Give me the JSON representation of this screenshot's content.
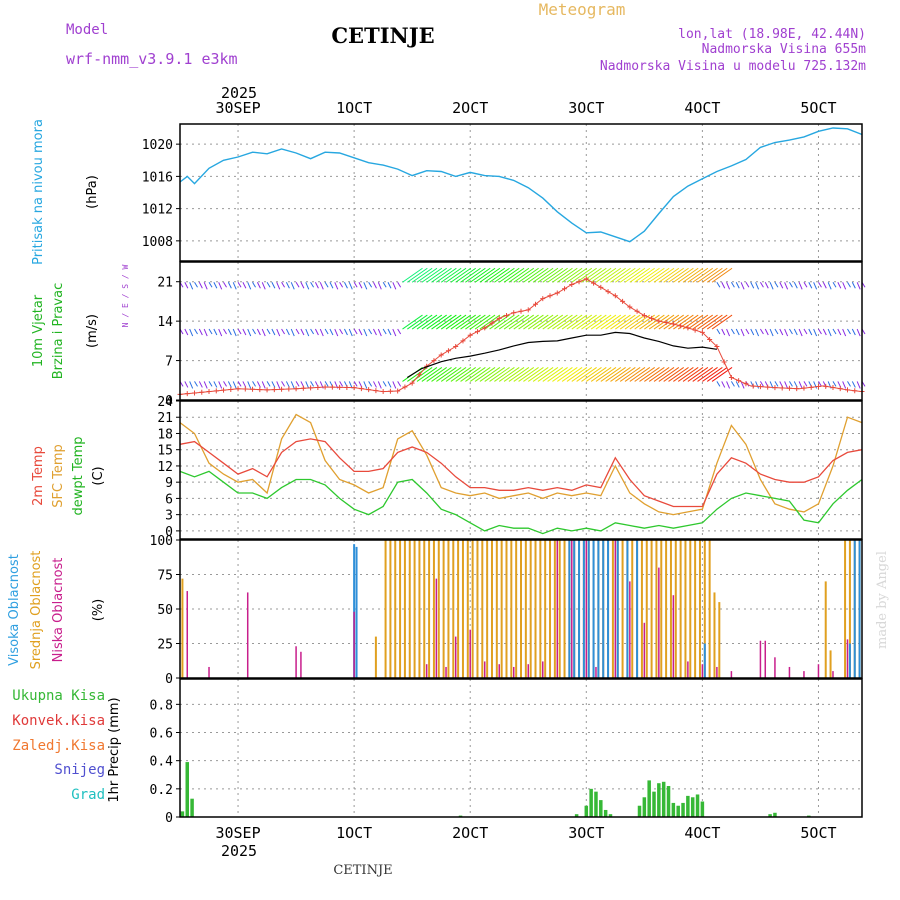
{
  "header": {
    "model_label": "Model",
    "model_name": "wrf-nmm_v3.9.1 e3km",
    "station": "CETINJE",
    "title": "Meteogram",
    "lonlat": "lon,lat (18.98E, 42.44N)",
    "altitude": "Nadmorska Visina 655m",
    "model_altitude": "Nadmorska Visina u modelu 725.132m",
    "footer_station": "CETINJE",
    "credit": "made by Angel"
  },
  "colors": {
    "pressure": "#27a7e0",
    "temp2m": "#e84a3c",
    "sfc": "#e0a030",
    "dewpt": "#2ec82e",
    "high_cloud": "#2f8fd8",
    "mid_cloud": "#e0a020",
    "low_cloud": "#c81e8c",
    "precip": "#36b836",
    "model_text": "#a040d0",
    "title_text": "#e6b860"
  },
  "time_axis": {
    "top_year": "2025",
    "bottom_year": "2025",
    "labels": [
      "30SEP",
      "1OCT",
      "2OCT",
      "3OCT",
      "4OCT",
      "5OCT"
    ],
    "label_hours": [
      12,
      36,
      60,
      84,
      108,
      132
    ],
    "x_start_hour": 0,
    "x_end_hour": 141
  },
  "chart_data": [
    {
      "type": "line",
      "name": "pressure",
      "ylabel_lines": [
        "Pritisak na nivou mora",
        "(hPa)"
      ],
      "ylim": [
        1005.5,
        1022.5
      ],
      "yticks": [
        1008,
        1012,
        1016,
        1020
      ],
      "series": [
        {
          "name": "MSLP",
          "x": [
            0,
            1.5,
            3,
            6,
            9,
            12,
            15,
            18,
            21,
            24,
            27,
            30,
            33,
            36,
            39,
            42,
            45,
            48,
            51,
            54,
            57,
            60,
            63,
            66,
            69,
            72,
            75,
            78,
            81,
            84,
            87,
            90,
            93,
            96,
            99,
            102,
            105,
            108,
            111,
            114,
            117,
            120,
            123,
            126,
            129,
            132,
            135,
            138,
            141
          ],
          "values": [
            1015.3,
            1016.0,
            1015.1,
            1017.0,
            1018.0,
            1018.4,
            1019.0,
            1018.8,
            1019.4,
            1018.9,
            1018.2,
            1019.0,
            1018.9,
            1018.3,
            1017.7,
            1017.4,
            1016.9,
            1016.1,
            1016.7,
            1016.6,
            1016.0,
            1016.5,
            1016.1,
            1016.0,
            1015.5,
            1014.6,
            1013.3,
            1011.6,
            1010.2,
            1009.0,
            1009.1,
            1008.5,
            1007.9,
            1009.2,
            1011.4,
            1013.5,
            1014.8,
            1015.7,
            1016.6,
            1017.3,
            1018.1,
            1019.6,
            1020.2,
            1020.5,
            1020.9,
            1021.6,
            1022.0,
            1021.9,
            1021.2
          ]
        }
      ]
    },
    {
      "type": "line",
      "name": "wind",
      "ylabel_lines": [
        "10m Vjetar",
        "Brzina i Pravac",
        "(m/s)"
      ],
      "compass": "N / E / S / W",
      "ylim": [
        0,
        24.5
      ],
      "yticks": [
        0,
        7,
        14,
        21
      ],
      "series": [
        {
          "name": "wind speed",
          "x": [
            47,
            50,
            54,
            57,
            60,
            63,
            66,
            69,
            72,
            75,
            78,
            81,
            84,
            87,
            90,
            93,
            96,
            99,
            102,
            105,
            108,
            111
          ],
          "values": [
            4.0,
            5.6,
            6.8,
            7.4,
            7.8,
            8.3,
            8.9,
            9.6,
            10.2,
            10.4,
            10.5,
            11.0,
            11.5,
            11.5,
            12.0,
            11.8,
            11.0,
            10.4,
            9.6,
            9.2,
            9.4,
            9.0
          ]
        },
        {
          "name": "wind gust",
          "x": [
            0,
            6,
            12,
            18,
            24,
            30,
            36,
            42,
            45,
            48,
            51,
            54,
            57,
            60,
            63,
            66,
            69,
            72,
            75,
            78,
            81,
            84,
            87,
            90,
            93,
            96,
            99,
            102,
            105,
            108,
            111,
            114,
            118,
            123,
            128,
            133,
            138,
            141
          ],
          "values": [
            1.0,
            1.5,
            2.0,
            1.8,
            2.0,
            2.3,
            2.2,
            1.5,
            1.6,
            3.0,
            6.0,
            8.0,
            9.5,
            11.5,
            12.8,
            14.5,
            15.5,
            16.0,
            18.0,
            19.0,
            20.5,
            21.5,
            20.0,
            18.5,
            16.5,
            15.0,
            14.0,
            13.5,
            12.8,
            12.0,
            9.5,
            4.0,
            2.5,
            2.2,
            2.0,
            2.5,
            1.8,
            1.5
          ]
        }
      ],
      "barb_rows": [
        3.3,
        12.6,
        20.9
      ]
    },
    {
      "type": "line",
      "name": "temperature",
      "ylabel_lines": [
        "2m Temp",
        "SFC Temp",
        "dewpt Temp",
        "(C)"
      ],
      "ylim": [
        -1.5,
        24
      ],
      "yticks": [
        0,
        3,
        6,
        9,
        12,
        15,
        18,
        21,
        24
      ],
      "series": [
        {
          "name": "2m Temp",
          "x": [
            0,
            3,
            6,
            9,
            12,
            15,
            18,
            21,
            24,
            27,
            30,
            33,
            36,
            39,
            42,
            45,
            48,
            51,
            54,
            57,
            60,
            63,
            66,
            69,
            72,
            75,
            78,
            81,
            84,
            87,
            90,
            93,
            96,
            99,
            102,
            105,
            108,
            111,
            114,
            117,
            120,
            123,
            126,
            129,
            132,
            135,
            138,
            141
          ],
          "values": [
            16.0,
            16.5,
            14.5,
            12.5,
            10.5,
            11.5,
            10.0,
            14.5,
            16.5,
            17.0,
            16.5,
            13.5,
            11.0,
            11.0,
            11.5,
            14.5,
            15.5,
            14.5,
            12.5,
            10.0,
            8.0,
            8.0,
            7.5,
            7.5,
            8.0,
            7.5,
            8.0,
            7.5,
            8.5,
            8.0,
            13.5,
            9.5,
            6.5,
            5.5,
            4.5,
            4.5,
            4.5,
            10.5,
            13.5,
            12.5,
            10.5,
            9.5,
            9.0,
            9.0,
            10.0,
            13.0,
            14.5,
            15.0
          ]
        },
        {
          "name": "SFC Temp",
          "x": [
            0,
            3,
            6,
            9,
            12,
            15,
            18,
            21,
            24,
            27,
            30,
            33,
            36,
            39,
            42,
            45,
            48,
            51,
            54,
            57,
            60,
            63,
            66,
            69,
            72,
            75,
            78,
            81,
            84,
            87,
            90,
            93,
            96,
            99,
            102,
            105,
            108,
            111,
            114,
            117,
            120,
            123,
            126,
            129,
            132,
            135,
            138,
            141
          ],
          "values": [
            20.0,
            18.0,
            12.5,
            10.5,
            9.0,
            9.5,
            7.0,
            17.0,
            21.5,
            20.0,
            13.0,
            9.5,
            8.5,
            7.0,
            8.0,
            17.0,
            18.5,
            14.0,
            8.0,
            7.0,
            6.5,
            7.0,
            6.0,
            6.5,
            7.0,
            6.0,
            7.0,
            6.5,
            7.0,
            6.5,
            12.0,
            7.0,
            5.0,
            3.5,
            3.0,
            3.5,
            4.0,
            12.5,
            19.5,
            16.0,
            9.5,
            5.0,
            4.0,
            3.5,
            5.0,
            12.0,
            21.0,
            20.0
          ]
        },
        {
          "name": "dewpt Temp",
          "x": [
            0,
            3,
            6,
            9,
            12,
            15,
            18,
            21,
            24,
            27,
            30,
            33,
            36,
            39,
            42,
            45,
            48,
            51,
            54,
            57,
            60,
            63,
            66,
            69,
            72,
            75,
            78,
            81,
            84,
            87,
            90,
            93,
            96,
            99,
            102,
            105,
            108,
            111,
            114,
            117,
            120,
            123,
            126,
            129,
            132,
            135,
            138,
            141
          ],
          "values": [
            11.0,
            10.0,
            11.0,
            9.0,
            7.0,
            7.0,
            6.0,
            8.0,
            9.5,
            9.5,
            8.5,
            6.0,
            4.0,
            3.0,
            4.5,
            9.0,
            9.5,
            7.0,
            4.0,
            3.0,
            1.5,
            0.0,
            1.0,
            0.5,
            0.5,
            -0.5,
            0.5,
            0.0,
            0.5,
            0.0,
            1.5,
            1.0,
            0.5,
            1.0,
            0.5,
            1.0,
            1.5,
            4.0,
            6.0,
            7.0,
            6.5,
            6.0,
            5.5,
            2.0,
            1.5,
            5.0,
            7.5,
            9.5
          ]
        }
      ]
    },
    {
      "type": "bar",
      "name": "cloud cover",
      "ylabel_lines": [
        "Visoka Oblacnost",
        "Srednja Oblacnost",
        "Niska Oblacnost",
        "(%)"
      ],
      "ylim": [
        0,
        100
      ],
      "yticks": [
        0,
        25,
        50,
        75,
        100
      ],
      "series": [
        {
          "name": "Visoka Oblacnost",
          "x": [
            36,
            36.5,
            80.5,
            81.5,
            82.5,
            83.5,
            84.5,
            85.5,
            86.5,
            87.5,
            88.5,
            90.5,
            92.5,
            94.5,
            108.5,
            138.5,
            139.5,
            140.5
          ],
          "values": [
            97,
            95,
            100,
            100,
            100,
            100,
            100,
            100,
            100,
            100,
            100,
            100,
            100,
            100,
            25,
            25,
            100,
            100
          ]
        },
        {
          "name": "Srednja Oblacnost",
          "x": [
            0.5,
            40.5,
            42.5,
            43.5,
            44.5,
            45.5,
            46.5,
            47.5,
            48.5,
            49.5,
            50.5,
            51.5,
            52.5,
            53.5,
            54.5,
            55.5,
            56.5,
            57.5,
            58.5,
            59.5,
            60.5,
            61.5,
            62.5,
            63.5,
            64.5,
            65.5,
            66.5,
            67.5,
            68.5,
            69.5,
            70.5,
            71.5,
            72.5,
            73.5,
            74.5,
            75.5,
            76.5,
            77.5,
            78.5,
            79.5,
            80.5,
            81.5,
            82.5,
            83.5,
            84.5,
            85.5,
            86.5,
            87.5,
            88.5,
            89.5,
            90.5,
            91.5,
            92.5,
            93.5,
            94.5,
            95.5,
            96.5,
            97.5,
            98.5,
            99.5,
            100.5,
            101.5,
            102.5,
            103.5,
            104.5,
            105.5,
            106.5,
            107.5,
            108.5,
            109.5,
            110.5,
            111.5,
            133.5,
            134.5,
            137.5,
            138.5,
            139.5,
            140.5
          ],
          "values": [
            72,
            30,
            100,
            100,
            100,
            100,
            100,
            100,
            100,
            100,
            100,
            100,
            100,
            100,
            100,
            100,
            100,
            100,
            100,
            100,
            100,
            100,
            100,
            100,
            100,
            100,
            100,
            100,
            100,
            100,
            100,
            100,
            100,
            100,
            100,
            100,
            100,
            100,
            100,
            100,
            100,
            100,
            100,
            100,
            100,
            100,
            100,
            100,
            100,
            100,
            100,
            100,
            100,
            100,
            100,
            100,
            100,
            100,
            100,
            100,
            100,
            100,
            100,
            100,
            100,
            100,
            100,
            100,
            100,
            100,
            62,
            55,
            70,
            20,
            100,
            100,
            100,
            100
          ]
        },
        {
          "name": "Niska Oblacnost",
          "x": [
            1.5,
            6,
            14,
            24,
            25,
            36,
            51,
            53,
            55,
            57,
            60,
            63,
            66,
            69,
            72,
            75,
            78,
            81,
            84,
            86,
            90,
            93,
            96,
            99,
            102,
            105,
            108,
            111,
            114,
            120,
            121,
            123,
            126,
            129,
            132,
            135,
            138
          ],
          "values": [
            63,
            8,
            62,
            23,
            19,
            48,
            10,
            72,
            8,
            30,
            35,
            12,
            10,
            8,
            10,
            12,
            100,
            100,
            100,
            8,
            100,
            70,
            40,
            80,
            60,
            12,
            10,
            8,
            5,
            27,
            27,
            15,
            8,
            5,
            10,
            5,
            28
          ]
        }
      ]
    },
    {
      "type": "bar",
      "name": "precipitation",
      "ylabel_lines": [
        "1hr Precip (mm)"
      ],
      "legend": [
        "Ukupna Kisa",
        "Konvek.Kisa",
        "Zaledj.Kisa",
        "Snijeg",
        "Grad"
      ],
      "legend_colors": [
        "#36b836",
        "#e03a3a",
        "#f07830",
        "#5050d0",
        "#20c0c0"
      ],
      "ylim": [
        0,
        0.98
      ],
      "yticks": [
        0,
        0.2,
        0.4,
        0.6,
        0.8
      ],
      "series": [
        {
          "name": "Ukupna Kisa",
          "x": [
            0.5,
            1.5,
            2.5,
            58,
            82,
            84,
            85,
            86,
            87,
            88,
            89,
            95,
            96,
            97,
            98,
            99,
            100,
            101,
            102,
            103,
            104,
            105,
            106,
            107,
            108,
            122,
            123,
            130
          ],
          "values": [
            0.04,
            0.39,
            0.13,
            0.01,
            0.02,
            0.08,
            0.2,
            0.18,
            0.12,
            0.05,
            0.02,
            0.08,
            0.14,
            0.26,
            0.18,
            0.24,
            0.25,
            0.22,
            0.1,
            0.08,
            0.1,
            0.15,
            0.14,
            0.16,
            0.11,
            0.02,
            0.03,
            0.01
          ]
        }
      ]
    }
  ]
}
